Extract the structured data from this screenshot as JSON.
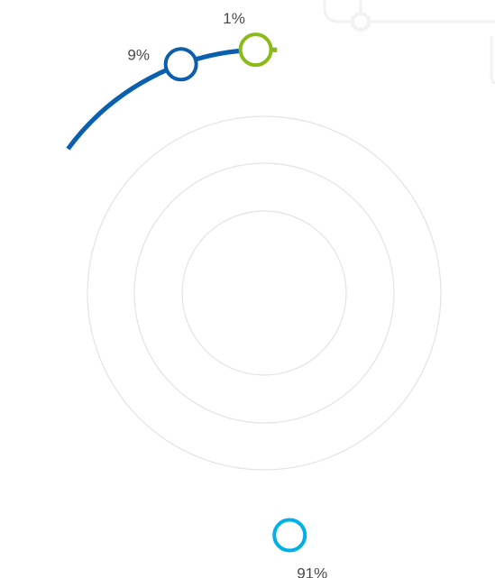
{
  "chart_data": {
    "type": "pie",
    "style": "ring",
    "slices": [
      {
        "value": 91,
        "label": "91%",
        "color": "#00b0e6"
      },
      {
        "value": 9,
        "label": "9%",
        "color": "#0b5fac"
      },
      {
        "value": 1,
        "label": "1%",
        "color": "#8bbb1a"
      }
    ],
    "guide_rings": 4,
    "colors": {
      "guide_ring": "#e3e3e3",
      "decoration": "#f2f2f2",
      "background": "#ffffff",
      "label": "#4a4a4a"
    }
  }
}
